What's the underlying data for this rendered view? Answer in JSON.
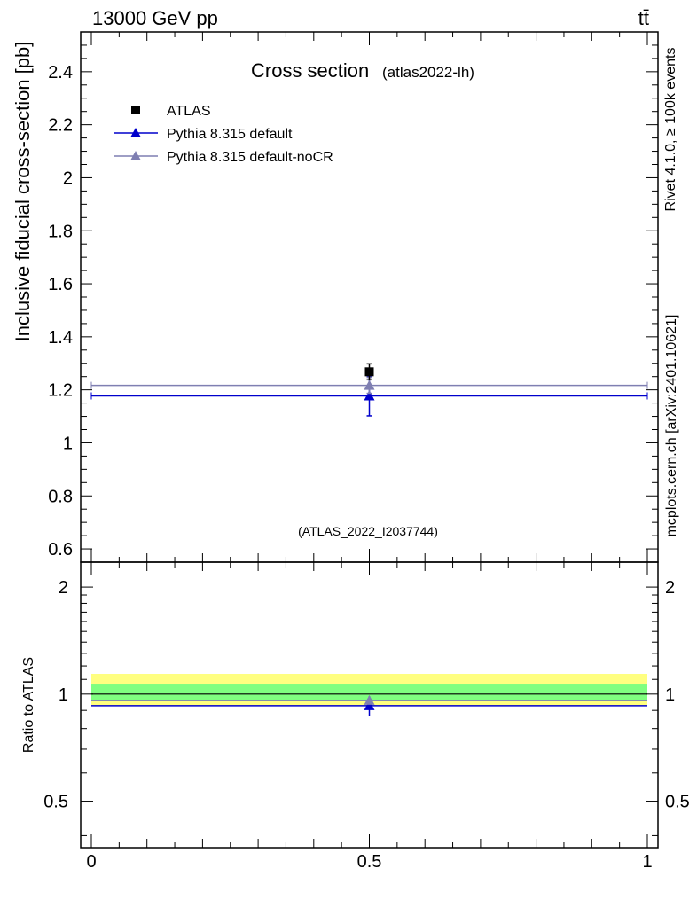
{
  "header": {
    "energy_label": "13000 GeV pp",
    "process_label": "tt̄"
  },
  "side": {
    "rivet_label": "Rivet 4.1.0, ≥ 100k events",
    "mcplots_label": "mcplots.cern.ch [arXiv:2401.10621]"
  },
  "chart_data": {
    "type": "scatter",
    "title": "Cross section",
    "subtitle": "(atlas2022-lh)",
    "analysis_id": "(ATLAS_2022_I2037744)",
    "xlabel": "",
    "ylabel": "Inclusive fiducial cross-section [pb]",
    "ratio_ylabel": "Ratio to ATLAS",
    "xlim": [
      0,
      1
    ],
    "ylim": [
      0.55,
      2.55
    ],
    "ratio_ylim": [
      0.37,
      2.35
    ],
    "x_ticks": [
      "0",
      "0.5",
      "1"
    ],
    "y_ticks": [
      "0.6",
      "0.8",
      "1",
      "1.2",
      "1.4",
      "1.6",
      "1.8",
      "2",
      "2.2",
      "2.4"
    ],
    "ratio_ticks": [
      "0.5",
      "1",
      "2"
    ],
    "legend_position": "top-left",
    "series": [
      {
        "name": "ATLAS",
        "color": "#000000",
        "marker": "square",
        "x": [
          0.5
        ],
        "y": [
          1.268
        ],
        "yerr": [
          0.03
        ],
        "ratio": [
          1.0
        ]
      },
      {
        "name": "Pythia 8.315 default",
        "color": "#0000cc",
        "marker": "triangle",
        "x": [
          0.5
        ],
        "y": [
          1.177
        ],
        "yerr": [
          0.075
        ],
        "ratio": [
          0.928
        ]
      },
      {
        "name": "Pythia 8.315 default-noCR",
        "color": "#7f7fb2",
        "marker": "triangle",
        "x": [
          0.5
        ],
        "y": [
          1.217
        ],
        "yerr": [
          0.03
        ],
        "ratio": [
          0.96
        ]
      }
    ],
    "ratio_bands": [
      {
        "color": "#ffff80",
        "lo": 0.93,
        "hi": 1.14
      },
      {
        "color": "#80ff80",
        "lo": 0.96,
        "hi": 1.07
      }
    ]
  }
}
